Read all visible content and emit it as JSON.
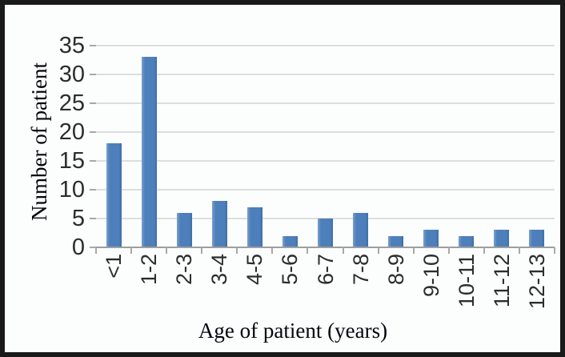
{
  "chart_data": {
    "type": "bar",
    "title": "",
    "xlabel": "Age of patient  (years)",
    "ylabel": "Number of patient",
    "categories": [
      "<1",
      "1-2",
      "2-3",
      "3-4",
      "4-5",
      "5-6",
      "6-7",
      "7-8",
      "8-9",
      "9-10",
      "10-11",
      "11-12",
      "12-13"
    ],
    "values": [
      18,
      33,
      6,
      8,
      7,
      2,
      5,
      6,
      2,
      3,
      2,
      3,
      3
    ],
    "ylim": [
      0,
      35
    ],
    "ytick_step": 5,
    "yticks": [
      0,
      5,
      10,
      15,
      20,
      25,
      30,
      35
    ],
    "grid": "horizontal",
    "legend": "none",
    "xlabel_rotation_deg": 90,
    "colors": {
      "bar": "#4d7fba",
      "gridline": "#dedede",
      "axis_line": "#9e9e9e",
      "tick": "#a8a8a8",
      "tick_label_text": "#2d2d2d",
      "axis_title_text": "#05050c",
      "background": "#fcfdfd",
      "frame_border": "#1a1a1a"
    }
  }
}
